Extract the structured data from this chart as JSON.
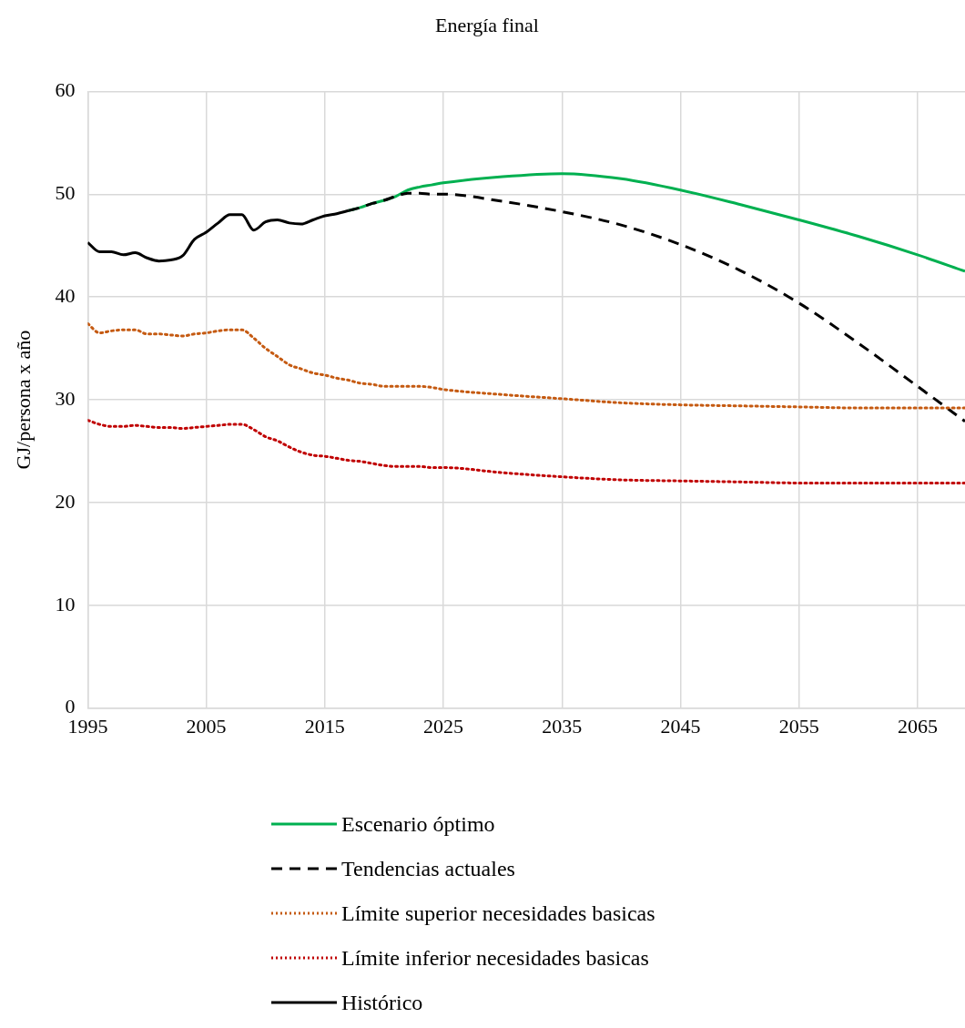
{
  "chart_data": {
    "type": "line",
    "title": "Energía final",
    "ylabel": "GJ/persona x año",
    "xlim": [
      1995,
      2069
    ],
    "xticks": [
      1995,
      2005,
      2015,
      2025,
      2035,
      2045,
      2055,
      2065
    ],
    "ylim": [
      0,
      60
    ],
    "yticks": [
      0,
      10,
      20,
      30,
      40,
      50,
      60
    ],
    "grid": true,
    "legend": "bottom",
    "marker": "none",
    "series": [
      {
        "name": "Escenario óptimo",
        "color": "#00b050",
        "line_style": "solid",
        "x": [
          2017,
          2018,
          2019,
          2020,
          2021,
          2022,
          2023,
          2024,
          2025,
          2030,
          2035,
          2040,
          2045,
          2050,
          2055,
          2060,
          2065,
          2069
        ],
        "values": [
          48.4,
          48.7,
          49.1,
          49.4,
          49.8,
          50.4,
          50.7,
          50.9,
          51.1,
          51.7,
          52.0,
          51.5,
          50.4,
          49.0,
          47.5,
          45.9,
          44.1,
          42.5
        ]
      },
      {
        "name": "Tendencias actuales",
        "color": "#000000",
        "line_style": "dashed",
        "x": [
          2017,
          2018,
          2019,
          2020,
          2021,
          2022,
          2023,
          2024,
          2025,
          2030,
          2035,
          2040,
          2045,
          2050,
          2055,
          2060,
          2065,
          2069
        ],
        "values": [
          48.4,
          48.7,
          49.1,
          49.4,
          49.8,
          50.1,
          50.1,
          50.0,
          50.0,
          49.3,
          48.3,
          47.0,
          45.1,
          42.6,
          39.4,
          35.5,
          31.3,
          27.9
        ]
      },
      {
        "name": "Límite superior necesidades basicas",
        "color": "#c55a11",
        "line_style": "dotted",
        "x": [
          1995,
          1996,
          1997,
          1998,
          1999,
          2000,
          2001,
          2002,
          2003,
          2004,
          2005,
          2006,
          2007,
          2008,
          2009,
          2010,
          2011,
          2012,
          2013,
          2014,
          2015,
          2016,
          2017,
          2018,
          2019,
          2020,
          2021,
          2022,
          2023,
          2024,
          2025,
          2030,
          2035,
          2040,
          2045,
          2050,
          2055,
          2060,
          2065,
          2069
        ],
        "values": [
          37.4,
          36.5,
          36.7,
          36.8,
          36.8,
          36.4,
          36.4,
          36.3,
          36.2,
          36.4,
          36.5,
          36.7,
          36.8,
          36.8,
          36.0,
          35.0,
          34.2,
          33.4,
          33.0,
          32.6,
          32.4,
          32.1,
          31.9,
          31.6,
          31.5,
          31.3,
          31.3,
          31.3,
          31.3,
          31.2,
          31.0,
          30.5,
          30.1,
          29.7,
          29.5,
          29.4,
          29.3,
          29.2,
          29.2,
          29.2
        ]
      },
      {
        "name": "Límite inferior necesidades basicas",
        "color": "#c00000",
        "line_style": "dotted",
        "x": [
          1995,
          1996,
          1997,
          1998,
          1999,
          2000,
          2001,
          2002,
          2003,
          2004,
          2005,
          2006,
          2007,
          2008,
          2009,
          2010,
          2011,
          2012,
          2013,
          2014,
          2015,
          2016,
          2017,
          2018,
          2019,
          2020,
          2021,
          2022,
          2023,
          2024,
          2025,
          2030,
          2035,
          2040,
          2045,
          2050,
          2055,
          2060,
          2065,
          2069
        ],
        "values": [
          28.0,
          27.6,
          27.4,
          27.4,
          27.5,
          27.4,
          27.3,
          27.3,
          27.2,
          27.3,
          27.4,
          27.5,
          27.6,
          27.6,
          27.1,
          26.4,
          26.0,
          25.4,
          24.9,
          24.6,
          24.5,
          24.3,
          24.1,
          24.0,
          23.8,
          23.6,
          23.5,
          23.5,
          23.5,
          23.4,
          23.4,
          22.9,
          22.5,
          22.2,
          22.1,
          22.0,
          21.9,
          21.9,
          21.9,
          21.9
        ]
      },
      {
        "name": "Histórico",
        "color": "#000000",
        "line_style": "solid",
        "x": [
          1995,
          1996,
          1997,
          1998,
          1999,
          2000,
          2001,
          2002,
          2003,
          2004,
          2005,
          2006,
          2007,
          2008,
          2009,
          2010,
          2011,
          2012,
          2013,
          2014,
          2015,
          2016,
          2017
        ],
        "values": [
          45.3,
          44.4,
          44.4,
          44.1,
          44.3,
          43.8,
          43.5,
          43.6,
          44.0,
          45.6,
          46.3,
          47.2,
          48.0,
          48.0,
          46.5,
          47.3,
          47.5,
          47.2,
          47.1,
          47.5,
          47.9,
          48.1,
          48.4
        ]
      }
    ]
  }
}
